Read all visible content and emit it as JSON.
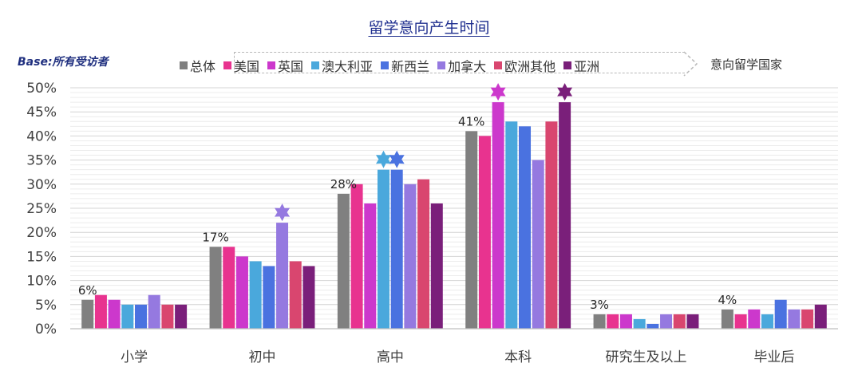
{
  "chart_data": {
    "type": "bar",
    "title": "留学意向产生时间",
    "base_note": "Base:所有受访者",
    "legend_note": "意向留学国家",
    "categories": [
      "小学",
      "初中",
      "高中",
      "本科",
      "研究生及以上",
      "毕业后"
    ],
    "ylim": [
      0,
      50
    ],
    "yticks": [
      "0%",
      "5%",
      "10%",
      "15%",
      "20%",
      "25%",
      "30%",
      "35%",
      "40%",
      "45%",
      "50%"
    ],
    "series": [
      {
        "name": "总体",
        "color": "#808080",
        "values": [
          6,
          17,
          28,
          41,
          3,
          4
        ]
      },
      {
        "name": "美国",
        "color": "#e8338f",
        "values": [
          7,
          17,
          30,
          40,
          3,
          3
        ]
      },
      {
        "name": "英国",
        "color": "#cc38cc",
        "values": [
          6,
          15,
          26,
          47,
          3,
          4
        ]
      },
      {
        "name": "澳大利亚",
        "color": "#4aa8dc",
        "values": [
          5,
          14,
          33,
          43,
          2,
          3
        ]
      },
      {
        "name": "新西兰",
        "color": "#4a72e0",
        "values": [
          5,
          13,
          33,
          42,
          1,
          6
        ]
      },
      {
        "name": "加拿大",
        "color": "#9579e0",
        "values": [
          7,
          22,
          30,
          35,
          3,
          4
        ]
      },
      {
        "name": "欧洲其他",
        "color": "#d9466f",
        "values": [
          5,
          14,
          31,
          43,
          3,
          4
        ]
      },
      {
        "name": "亚洲",
        "color": "#7a1f7a",
        "values": [
          5,
          13,
          26,
          47,
          3,
          5
        ]
      }
    ],
    "data_labels": [
      {
        "category": 0,
        "series": 0,
        "text": "6%"
      },
      {
        "category": 1,
        "series": 0,
        "text": "17%"
      },
      {
        "category": 2,
        "series": 0,
        "text": "28%"
      },
      {
        "category": 3,
        "series": 0,
        "text": "41%"
      },
      {
        "category": 4,
        "series": 0,
        "text": "3%"
      },
      {
        "category": 5,
        "series": 0,
        "text": "4%"
      }
    ],
    "stars": [
      {
        "category": 1,
        "series": 5
      },
      {
        "category": 2,
        "series": 3
      },
      {
        "category": 2,
        "series": 4
      },
      {
        "category": 3,
        "series": 2
      },
      {
        "category": 3,
        "series": 7
      }
    ]
  }
}
